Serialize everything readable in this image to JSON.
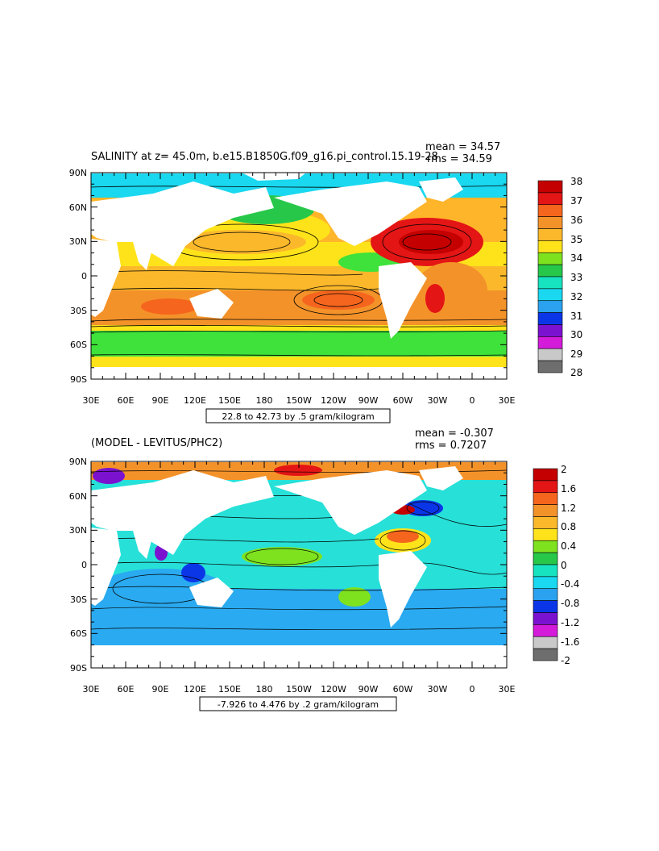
{
  "panels": [
    {
      "title": "SALINITY at z=  45.0m, b.e15.B1850G.f09_g16.pi_control.15.19-28",
      "stats": {
        "mean": "mean = 34.57",
        "rms": "rms = 34.59"
      },
      "range_label": "22.8 to 42.73 by .5 gram/kilogram",
      "y_ticks": [
        "90N",
        "60N",
        "30N",
        "0",
        "30S",
        "60S",
        "90S"
      ],
      "x_ticks": [
        "30E",
        "60E",
        "90E",
        "120E",
        "150E",
        "180",
        "150W",
        "120W",
        "90W",
        "60W",
        "30W",
        "0",
        "30E"
      ],
      "colorbar": {
        "labels": [
          "38",
          "37",
          "36",
          "35",
          "34",
          "33",
          "32",
          "31",
          "30",
          "29",
          "28"
        ],
        "colors": [
          "#c40000",
          "#e41515",
          "#f5651d",
          "#f4922a",
          "#fbb82b",
          "#ffe31a",
          "#7ee21f",
          "#27c84a",
          "#17e3c0",
          "#19d8ef",
          "#2aa2f0",
          "#0a36e8",
          "#7b12cf",
          "#d31bd9",
          "#c9c9c9",
          "#6e6e6e"
        ]
      }
    },
    {
      "title": "(MODEL - LEVITUS/PHC2)",
      "stats": {
        "mean": "mean = -0.307",
        "rms": "rms = 0.7207"
      },
      "range_label": "-7.926 to 4.476 by .2 gram/kilogram",
      "y_ticks": [
        "90N",
        "60N",
        "30N",
        "0",
        "30S",
        "60S",
        "90S"
      ],
      "x_ticks": [
        "30E",
        "60E",
        "90E",
        "120E",
        "150E",
        "180",
        "150W",
        "120W",
        "90W",
        "60W",
        "30W",
        "0",
        "30E"
      ],
      "colorbar": {
        "labels": [
          "2",
          "1.6",
          "1.2",
          "0.8",
          "0.4",
          "0",
          "-0.4",
          "-0.8",
          "-1.2",
          "-1.6",
          "-2"
        ],
        "colors": [
          "#c40000",
          "#e41515",
          "#f5651d",
          "#f4922a",
          "#fbb82b",
          "#ffe31a",
          "#7ee21f",
          "#27c84a",
          "#17e3c0",
          "#19d8ef",
          "#2aa2f0",
          "#0a36e8",
          "#7b12cf",
          "#d31bd9",
          "#c9c9c9",
          "#6e6e6e"
        ]
      }
    }
  ],
  "fill": {
    "ocean_top": "#ffb52a",
    "ocean_top_south": "#3ee23a",
    "ocean_top_arctic": "#19d8ef",
    "ocean_top_atlantic": "#e41515",
    "ocean_bottom": "#27e0d8",
    "ocean_bottom_south": "#2aaaf0",
    "ocean_bottom_arctic": "#f4922a",
    "land": "#ffffff"
  }
}
